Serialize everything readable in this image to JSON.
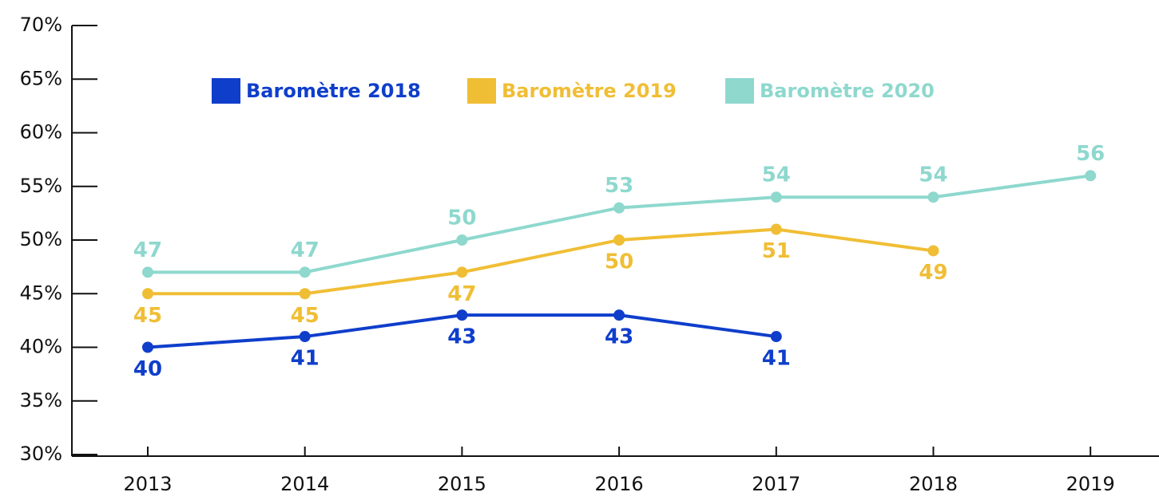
{
  "chart_data": {
    "type": "line",
    "categories": [
      "2013",
      "2014",
      "2015",
      "2016",
      "2017",
      "2018",
      "2019"
    ],
    "series": [
      {
        "name": "Baromètre 2018",
        "color": "#0f3ecb",
        "values": [
          40,
          41,
          43,
          43,
          41,
          null,
          null
        ]
      },
      {
        "name": "Baromètre 2019",
        "color": "#f0be35",
        "values": [
          45,
          45,
          47,
          50,
          51,
          49,
          null
        ]
      },
      {
        "name": "Baromètre 2020",
        "color": "#8ed8ce",
        "values": [
          47,
          47,
          50,
          53,
          54,
          54,
          56
        ]
      }
    ],
    "ylim": [
      30,
      70
    ],
    "yticks": [
      {
        "value": 30,
        "label": "30%"
      },
      {
        "value": 35,
        "label": "35%"
      },
      {
        "value": 40,
        "label": "40%"
      },
      {
        "value": 45,
        "label": "45%"
      },
      {
        "value": 50,
        "label": "50%"
      },
      {
        "value": 55,
        "label": "55%"
      },
      {
        "value": 60,
        "label": "60%"
      },
      {
        "value": 65,
        "label": "65%"
      },
      {
        "value": 70,
        "label": "70%"
      }
    ],
    "legend": "top",
    "grid": false
  }
}
